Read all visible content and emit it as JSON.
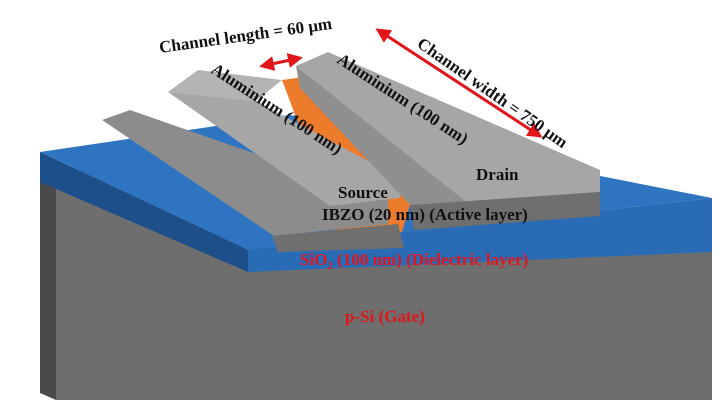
{
  "labels": {
    "channel_length": "Channel length = 60 μm",
    "channel_width": "Channel width = 750 μm",
    "aluminium_left": "Aluminium (100 nm)",
    "aluminium_right": "Aluminium (100 nm)",
    "source": "Source",
    "drain": "Drain",
    "active_layer": "IBZO (20 nm) (Active layer)",
    "dielectric_prefix": "SiO",
    "dielectric_subscript": "2",
    "dielectric_suffix": " (100 nm) (Dielectric layer)",
    "gate": "p-Si (Gate)"
  },
  "colors": {
    "substrate_front": "#6e6e6e",
    "substrate_side": "#4a4a4a",
    "dielectric_top": "#2e74c0",
    "dielectric_side": "#1d4f8a",
    "active_layer": "#ec7b2c",
    "electrode_top": "#a6a6a6",
    "electrode_face": "#8c8c8c",
    "electrode_dark": "#6f6f6f",
    "arrow": "#e0161b",
    "label_red": "#e0161b"
  }
}
